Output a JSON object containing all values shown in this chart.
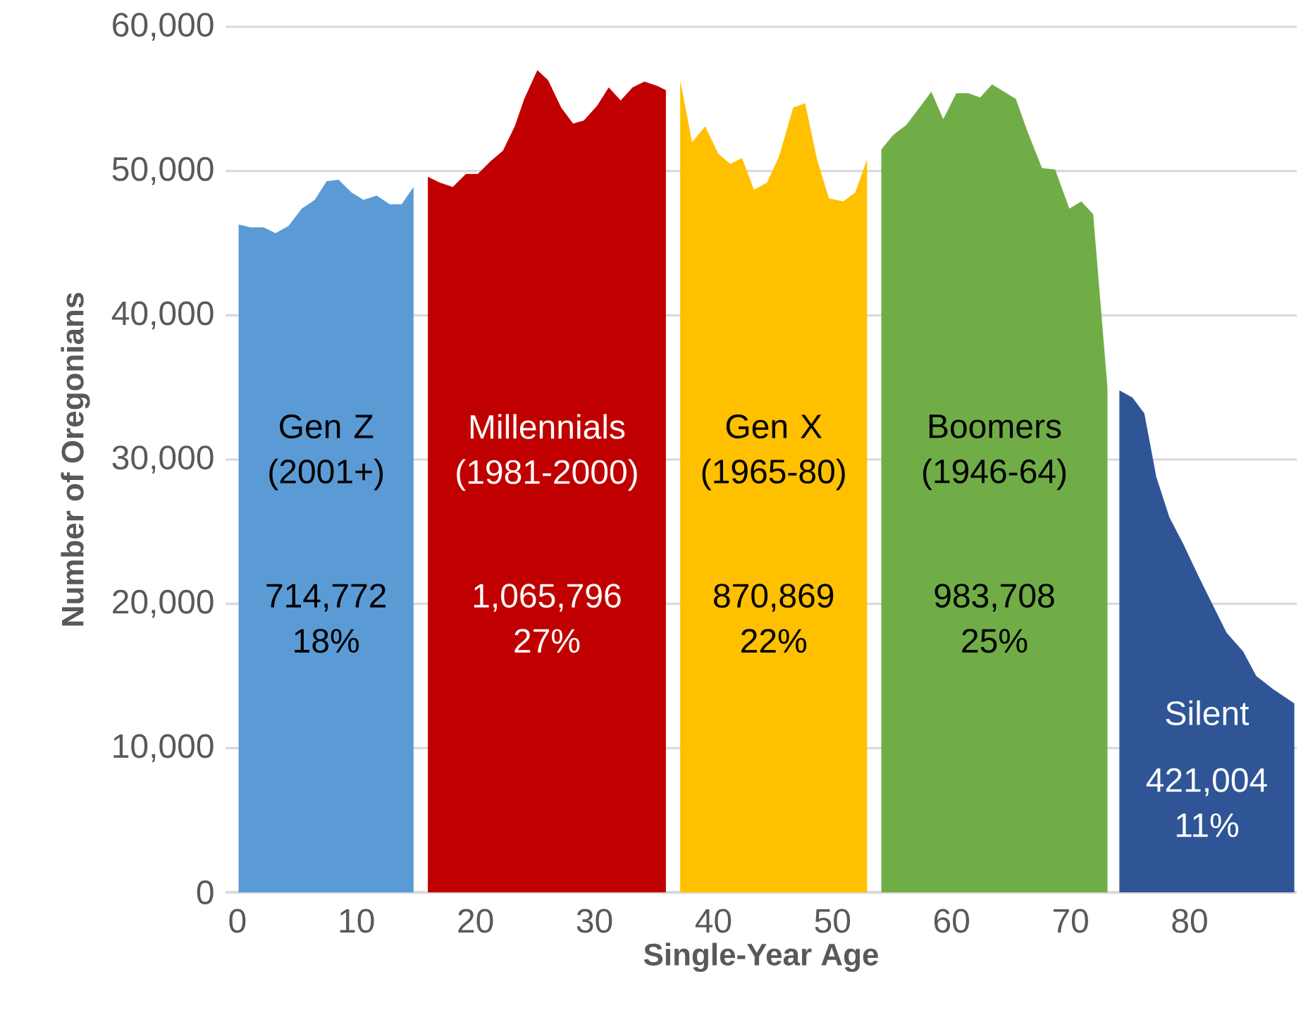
{
  "chart_data": {
    "type": "area",
    "xlabel": "Single-Year Age",
    "ylabel": "Number of Oregonians",
    "xlim": [
      -1,
      89
    ],
    "xticks": [
      0,
      10,
      20,
      30,
      40,
      50,
      60,
      70,
      80
    ],
    "ylim": [
      0,
      60000
    ],
    "yticks": [
      {
        "value": 0,
        "label": "0"
      },
      {
        "value": 10000,
        "label": "10,000"
      },
      {
        "value": 20000,
        "label": "20,000"
      },
      {
        "value": 30000,
        "label": "30,000"
      },
      {
        "value": 40000,
        "label": "40,000"
      },
      {
        "value": 50000,
        "label": "50,000"
      },
      {
        "value": 60000,
        "label": "60,000"
      }
    ],
    "grid": "y",
    "series": [
      {
        "name": "Gen Z (2001+)",
        "color": "#5b9bd5",
        "x": [
          0.1,
          1.1,
          2.2,
          3.2,
          4.3,
          5.4,
          6.5,
          7.5,
          8.5,
          9.6,
          10.6,
          11.7,
          12.8,
          13.8,
          14.8
        ],
        "values": [
          46300,
          46100,
          46100,
          45700,
          46200,
          47400,
          48000,
          49300,
          49400,
          48500,
          48000,
          48300,
          47700,
          47700,
          48900
        ]
      },
      {
        "name": "Millennials (1981-2000)",
        "color": "#c00000",
        "x": [
          16.0,
          17.0,
          18.1,
          19.2,
          20.2,
          21.3,
          22.3,
          23.3,
          24.1,
          25.2,
          26.1,
          27.2,
          28.2,
          29.1,
          30.2,
          31.2,
          32.2,
          33.2,
          34.2,
          35.3,
          36.0
        ],
        "values": [
          49600,
          49200,
          48900,
          49800,
          49800,
          50700,
          51400,
          53100,
          55000,
          57000,
          56300,
          54400,
          53300,
          53500,
          54500,
          55800,
          54900,
          55800,
          56200,
          55900,
          55600
        ]
      },
      {
        "name": "Gen X (1965-80)",
        "color": "#ffc000",
        "x": [
          37.2,
          38.2,
          39.3,
          40.4,
          41.4,
          42.4,
          43.4,
          44.5,
          45.5,
          46.7,
          47.7,
          48.7,
          49.7,
          50.9,
          51.9,
          52.9
        ],
        "values": [
          56300,
          52000,
          53100,
          51200,
          50500,
          50900,
          48700,
          49200,
          51000,
          54400,
          54700,
          50800,
          48100,
          47900,
          48500,
          50800
        ]
      },
      {
        "name": "Boomers (1946-64)",
        "color": "#70ad47",
        "x": [
          54.1,
          55.1,
          56.2,
          57.4,
          58.3,
          59.3,
          60.4,
          61.4,
          62.4,
          63.4,
          64.4,
          65.4,
          66.4,
          67.6,
          68.7,
          69.9,
          70.9,
          71.9,
          73.1
        ],
        "values": [
          51500,
          52500,
          53200,
          54500,
          55500,
          53600,
          55400,
          55400,
          55100,
          56000,
          55500,
          55000,
          52700,
          50200,
          50100,
          47400,
          47900,
          47000,
          35000
        ]
      },
      {
        "name": "Silent",
        "color": "#2f5597",
        "x": [
          74.1,
          75.2,
          76.2,
          77.2,
          78.3,
          79.5,
          80.7,
          81.9,
          83.1,
          84.5,
          85.6,
          87.0,
          88.8
        ],
        "values": [
          34800,
          34300,
          33200,
          28800,
          26000,
          24100,
          22000,
          20000,
          18000,
          16700,
          15000,
          14100,
          13100
        ]
      }
    ],
    "annotations": [
      "714,772 18%",
      "1,065,796 27%",
      "870,869 22%",
      "983,708 25%",
      "421,004 11%"
    ]
  }
}
